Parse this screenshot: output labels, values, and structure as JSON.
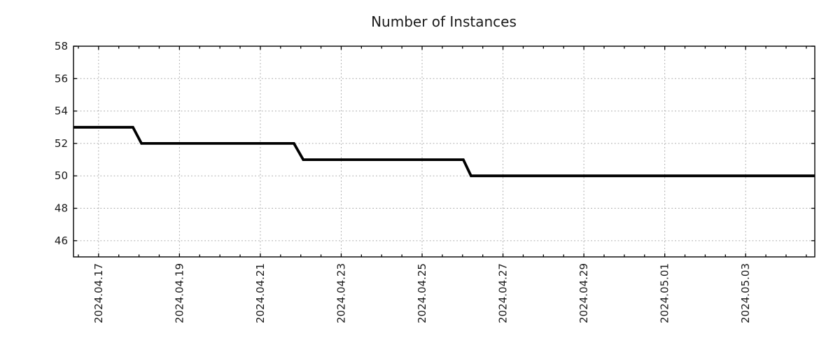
{
  "chart_data": {
    "type": "line",
    "title": "Number of Instances",
    "style": "step-like time series, single black line, dotted gray grid, no legend",
    "line_color": "#000000",
    "grid_color": "#a9a9a9",
    "axis_color": "#000000",
    "background": "#ffffff",
    "xlabel": "",
    "ylabel": "",
    "ylim": [
      45,
      58
    ],
    "y_ticks": [
      46,
      48,
      50,
      52,
      54,
      56,
      58
    ],
    "x_unit": "days since 2024-04-16 00:00",
    "xlim": [
      0.38,
      18.71
    ],
    "x_minor_step": 0.5,
    "x_major_ticks": [
      {
        "t": 1,
        "label": "2024.04.17"
      },
      {
        "t": 3,
        "label": "2024.04.19"
      },
      {
        "t": 5,
        "label": "2024.04.21"
      },
      {
        "t": 7,
        "label": "2024.04.23"
      },
      {
        "t": 9,
        "label": "2024.04.25"
      },
      {
        "t": 11,
        "label": "2024.04.27"
      },
      {
        "t": 13,
        "label": "2024.04.29"
      },
      {
        "t": 15,
        "label": "2024.05.01"
      },
      {
        "t": 17,
        "label": "2024.05.03"
      }
    ],
    "points": [
      [
        0.38,
        53
      ],
      [
        1.85,
        53
      ],
      [
        2.06,
        52
      ],
      [
        5.83,
        52
      ],
      [
        6.06,
        51
      ],
      [
        10.02,
        51
      ],
      [
        10.21,
        50
      ],
      [
        18.71,
        50
      ]
    ],
    "segments": [
      {
        "value": 53,
        "from": "chart start (~2024.04.16)",
        "to": "2024.04.17 night"
      },
      {
        "value": 52,
        "from": "2024.04.18",
        "to": "2024.04.21 night"
      },
      {
        "value": 51,
        "from": "2024.04.22",
        "to": "2024.04.26 early"
      },
      {
        "value": 50,
        "from": "2024.04.26",
        "to": "chart end (~2024.05.04)"
      }
    ]
  }
}
